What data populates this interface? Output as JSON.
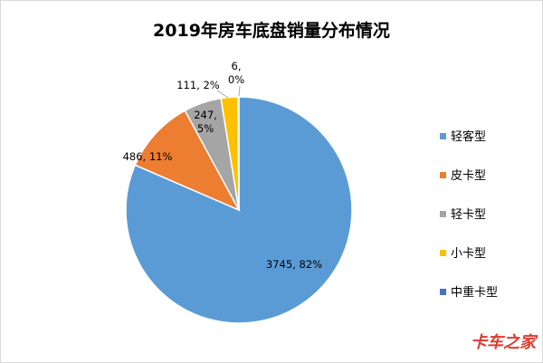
{
  "chart_data": {
    "type": "pie",
    "title": "2019年房车底盘销量分布情况",
    "categories": [
      "轻客型",
      "皮卡型",
      "轻卡型",
      "小卡型",
      "中重卡型"
    ],
    "values": [
      3745,
      486,
      247,
      111,
      6
    ],
    "percent_labels": [
      "82%",
      "11%",
      "5%",
      "2%",
      "0%"
    ],
    "colors": [
      "#5b9bd5",
      "#ed7d31",
      "#a5a5a5",
      "#ffc000",
      "#4472c4"
    ],
    "legend_position": "right",
    "start_angle_deg": 0,
    "direction": "clockwise"
  },
  "watermark": {
    "text": "卡车之家"
  }
}
